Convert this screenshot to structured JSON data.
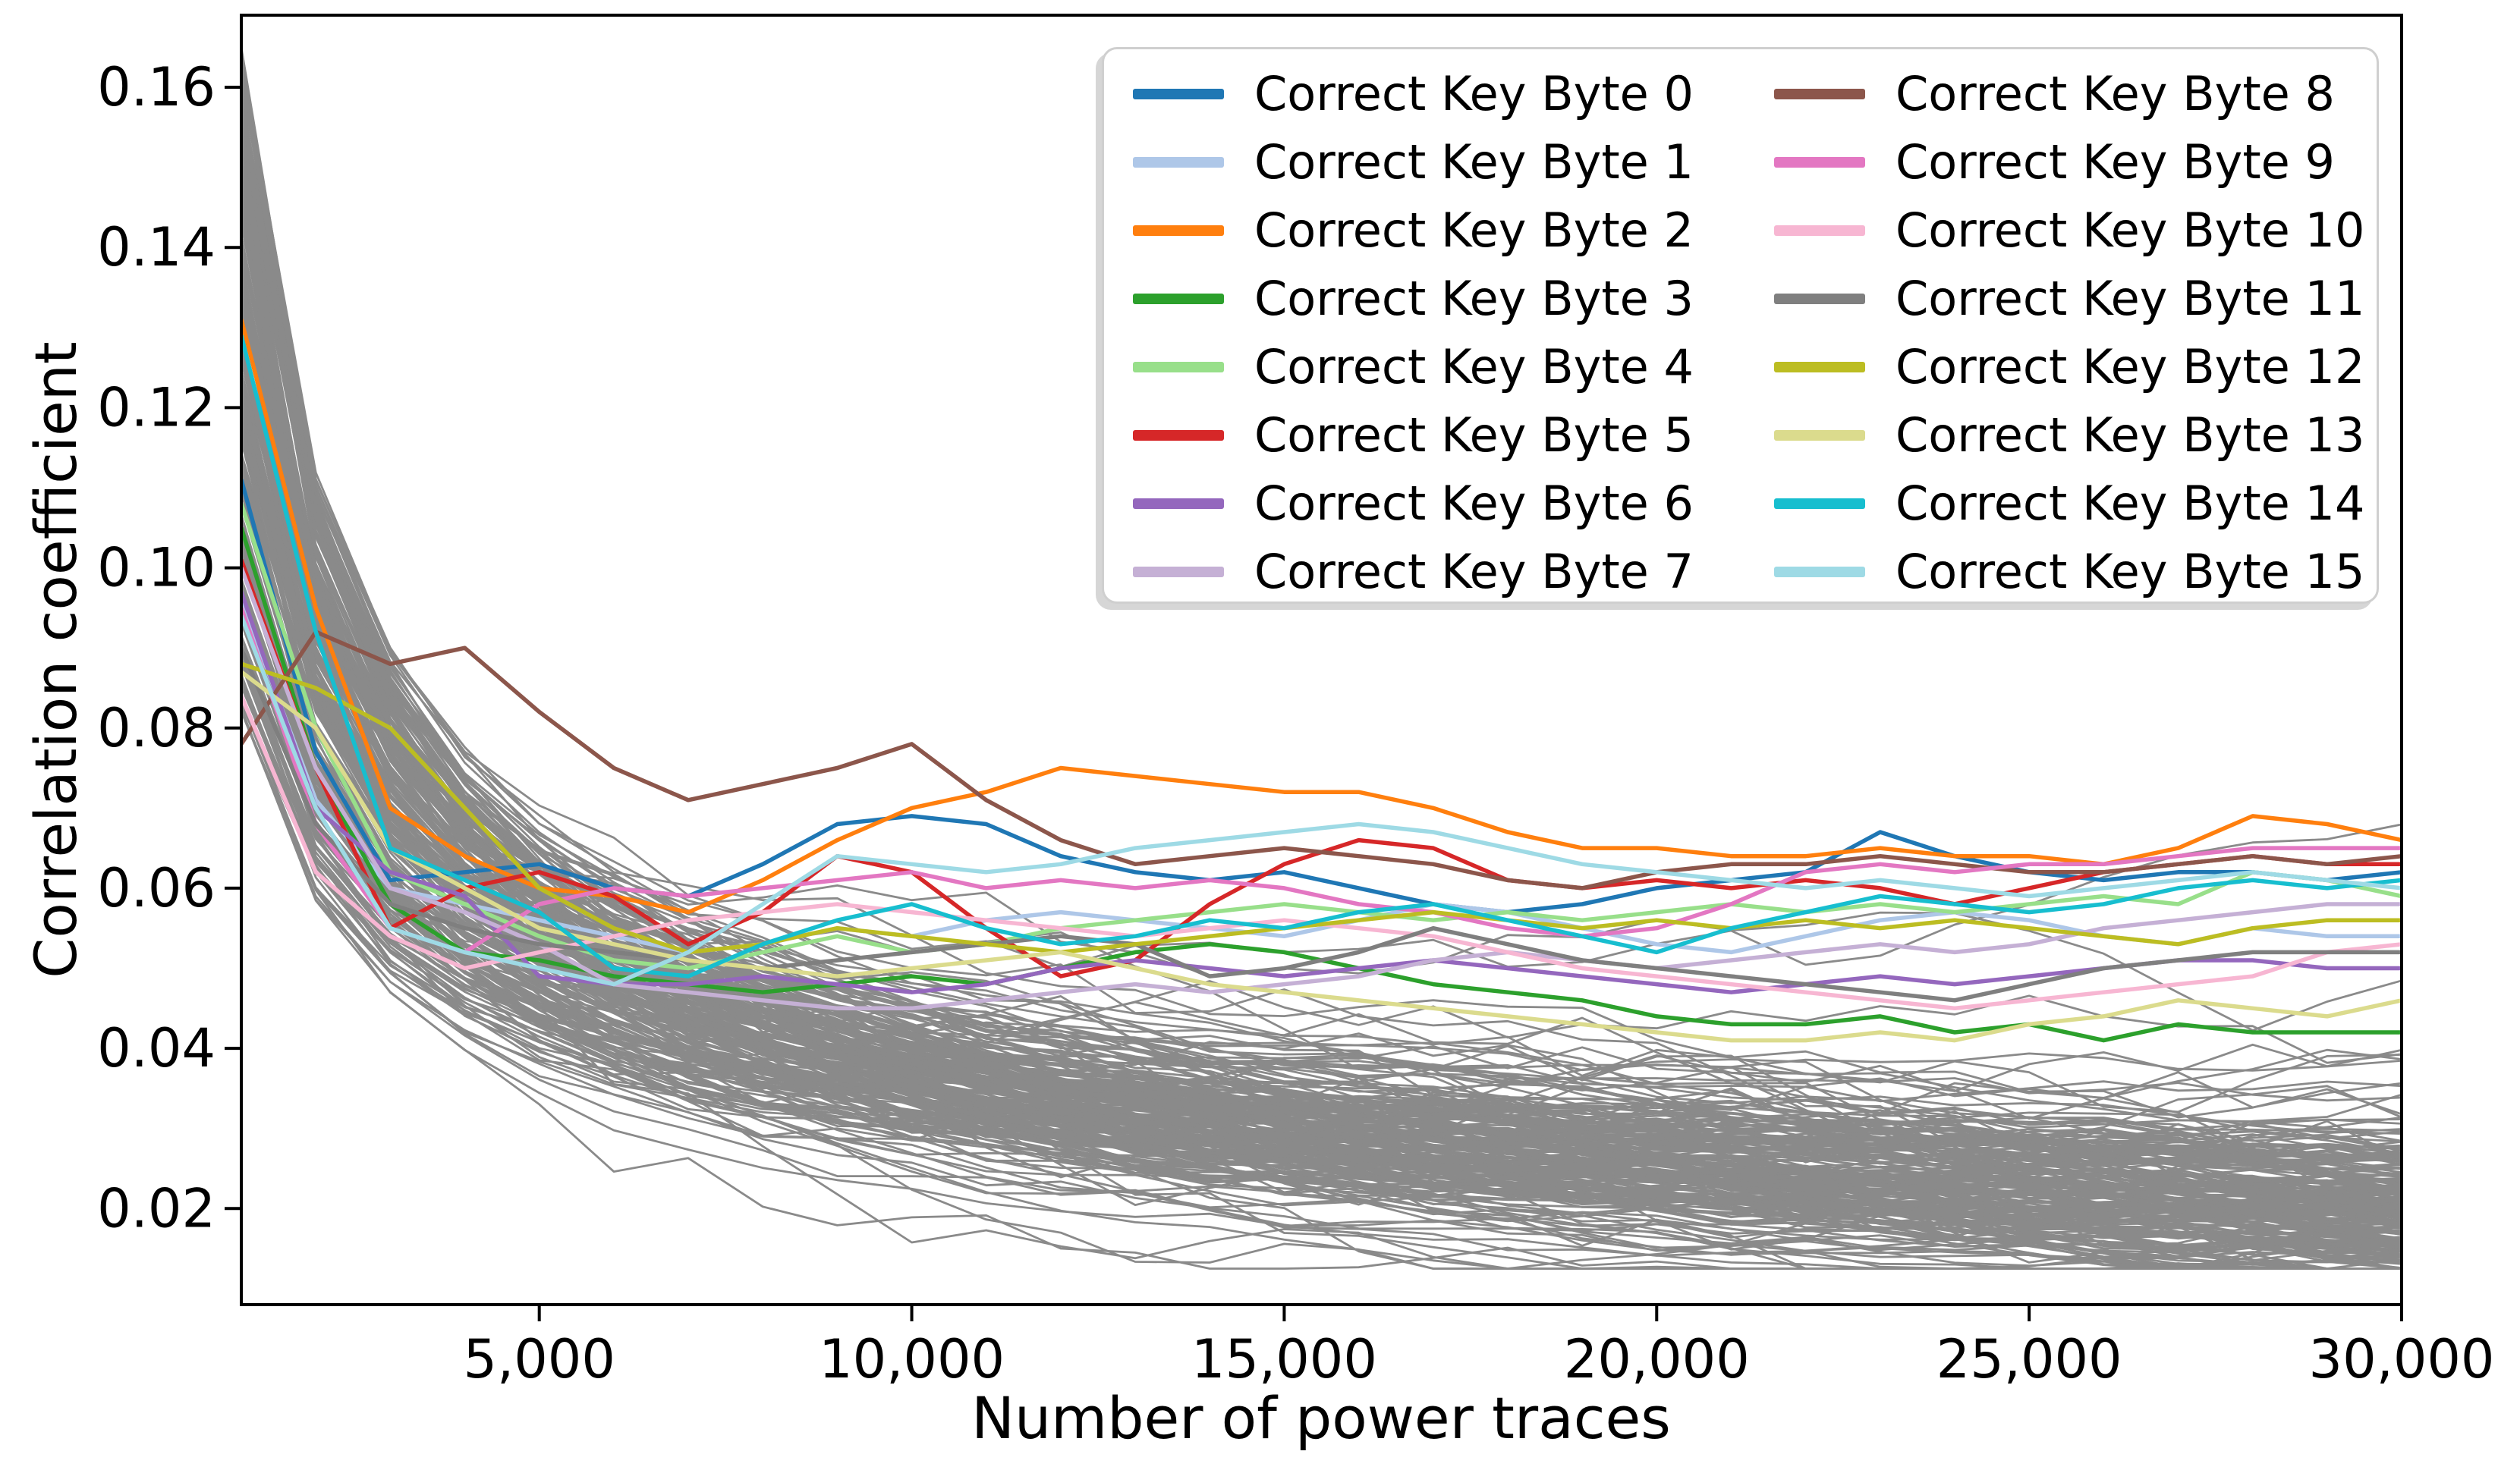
{
  "figure": {
    "kind": "line-plot-figure",
    "background_color": "#ffffff",
    "text_color": "#000000"
  },
  "chart_data": {
    "type": "line",
    "title": "",
    "xlabel": "Number of power traces",
    "ylabel": "Correlation coefficient",
    "grid": false,
    "legend": {
      "position": "upper right",
      "columns": 2,
      "border_color": "#cfcfcf",
      "background_color": "#ffffff"
    },
    "x_range": [
      1000,
      30000
    ],
    "y_axis_range": [
      0.008,
      0.169
    ],
    "x_ticks": [
      {
        "value": 5000,
        "label": "5,000"
      },
      {
        "value": 10000,
        "label": "10,000"
      },
      {
        "value": 15000,
        "label": "15,000"
      },
      {
        "value": 20000,
        "label": "20,000"
      },
      {
        "value": 25000,
        "label": "25,000"
      },
      {
        "value": 30000,
        "label": "30,000"
      }
    ],
    "y_ticks": [
      {
        "value": 0.02,
        "label": "0.02"
      },
      {
        "value": 0.04,
        "label": "0.04"
      },
      {
        "value": 0.06,
        "label": "0.06"
      },
      {
        "value": 0.08,
        "label": "0.08"
      },
      {
        "value": 0.1,
        "label": "0.10"
      },
      {
        "value": 0.12,
        "label": "0.12"
      },
      {
        "value": 0.14,
        "label": "0.14"
      },
      {
        "value": 0.16,
        "label": "0.16"
      }
    ],
    "x": [
      1000,
      2000,
      3000,
      4000,
      5000,
      6000,
      7000,
      8000,
      9000,
      10000,
      11000,
      12000,
      13000,
      14000,
      15000,
      16000,
      17000,
      18000,
      19000,
      20000,
      21000,
      22000,
      23000,
      24000,
      25000,
      26000,
      27000,
      28000,
      29000,
      30000
    ],
    "series": [
      {
        "name": "Correct Key Byte 0",
        "color": "#1f77b4",
        "values": [
          0.111,
          0.077,
          0.061,
          0.062,
          0.063,
          0.06,
          0.059,
          0.063,
          0.068,
          0.069,
          0.068,
          0.064,
          0.062,
          0.061,
          0.062,
          0.06,
          0.058,
          0.057,
          0.058,
          0.06,
          0.061,
          0.062,
          0.067,
          0.064,
          0.062,
          0.061,
          0.062,
          0.062,
          0.061,
          0.062
        ]
      },
      {
        "name": "Correct Key Byte 1",
        "color": "#aec7e8",
        "values": [
          0.096,
          0.071,
          0.06,
          0.058,
          0.056,
          0.054,
          0.052,
          0.053,
          0.055,
          0.054,
          0.056,
          0.057,
          0.056,
          0.055,
          0.054,
          0.056,
          0.058,
          0.057,
          0.055,
          0.053,
          0.052,
          0.054,
          0.056,
          0.057,
          0.056,
          0.054,
          0.053,
          0.055,
          0.054,
          0.054
        ]
      },
      {
        "name": "Correct Key Byte 2",
        "color": "#ff7f0e",
        "values": [
          0.131,
          0.095,
          0.07,
          0.064,
          0.06,
          0.059,
          0.057,
          0.061,
          0.066,
          0.07,
          0.072,
          0.075,
          0.074,
          0.073,
          0.072,
          0.072,
          0.07,
          0.067,
          0.065,
          0.065,
          0.064,
          0.064,
          0.065,
          0.064,
          0.064,
          0.063,
          0.065,
          0.069,
          0.068,
          0.066
        ]
      },
      {
        "name": "Correct Key Byte 3",
        "color": "#2ca02c",
        "values": [
          0.105,
          0.075,
          0.058,
          0.052,
          0.051,
          0.049,
          0.048,
          0.047,
          0.048,
          0.049,
          0.048,
          0.05,
          0.052,
          0.053,
          0.052,
          0.05,
          0.048,
          0.047,
          0.046,
          0.044,
          0.043,
          0.043,
          0.044,
          0.042,
          0.043,
          0.041,
          0.043,
          0.042,
          0.042,
          0.042
        ]
      },
      {
        "name": "Correct Key Byte 4",
        "color": "#98df8a",
        "values": [
          0.108,
          0.08,
          0.062,
          0.058,
          0.054,
          0.051,
          0.05,
          0.052,
          0.054,
          0.052,
          0.053,
          0.055,
          0.056,
          0.057,
          0.058,
          0.057,
          0.056,
          0.057,
          0.056,
          0.057,
          0.058,
          0.057,
          0.058,
          0.057,
          0.058,
          0.059,
          0.058,
          0.062,
          0.061,
          0.059
        ]
      },
      {
        "name": "Correct Key Byte 5",
        "color": "#d62728",
        "values": [
          0.101,
          0.075,
          0.055,
          0.06,
          0.062,
          0.059,
          0.053,
          0.057,
          0.064,
          0.062,
          0.055,
          0.049,
          0.051,
          0.058,
          0.063,
          0.066,
          0.065,
          0.061,
          0.06,
          0.061,
          0.06,
          0.061,
          0.06,
          0.058,
          0.06,
          0.062,
          0.063,
          0.064,
          0.063,
          0.063
        ]
      },
      {
        "name": "Correct Key Byte 6",
        "color": "#9467bd",
        "values": [
          0.097,
          0.07,
          0.062,
          0.059,
          0.049,
          0.048,
          0.048,
          0.049,
          0.048,
          0.047,
          0.048,
          0.05,
          0.051,
          0.05,
          0.049,
          0.05,
          0.051,
          0.05,
          0.049,
          0.048,
          0.047,
          0.048,
          0.049,
          0.048,
          0.049,
          0.05,
          0.051,
          0.051,
          0.05,
          0.05
        ]
      },
      {
        "name": "Correct Key Byte 7",
        "color": "#c5b0d5",
        "values": [
          0.1,
          0.075,
          0.06,
          0.057,
          0.053,
          0.048,
          0.047,
          0.046,
          0.045,
          0.045,
          0.046,
          0.047,
          0.048,
          0.047,
          0.048,
          0.049,
          0.051,
          0.052,
          0.051,
          0.05,
          0.051,
          0.052,
          0.053,
          0.052,
          0.053,
          0.055,
          0.056,
          0.057,
          0.058,
          0.058
        ]
      },
      {
        "name": "Correct Key Byte 8",
        "color": "#8c564b",
        "values": [
          0.078,
          0.092,
          0.088,
          0.09,
          0.082,
          0.075,
          0.071,
          0.073,
          0.075,
          0.078,
          0.071,
          0.066,
          0.063,
          0.064,
          0.065,
          0.064,
          0.063,
          0.061,
          0.06,
          0.062,
          0.063,
          0.063,
          0.064,
          0.063,
          0.062,
          0.062,
          0.063,
          0.064,
          0.063,
          0.064
        ]
      },
      {
        "name": "Correct Key Byte 9",
        "color": "#e377c2",
        "values": [
          0.095,
          0.068,
          0.055,
          0.052,
          0.058,
          0.06,
          0.059,
          0.06,
          0.061,
          0.062,
          0.06,
          0.061,
          0.06,
          0.061,
          0.06,
          0.058,
          0.057,
          0.055,
          0.054,
          0.055,
          0.058,
          0.062,
          0.063,
          0.062,
          0.063,
          0.063,
          0.064,
          0.065,
          0.065,
          0.065
        ]
      },
      {
        "name": "Correct Key Byte 10",
        "color": "#f7b6d2",
        "values": [
          0.084,
          0.062,
          0.054,
          0.05,
          0.052,
          0.054,
          0.056,
          0.057,
          0.058,
          0.057,
          0.056,
          0.055,
          0.054,
          0.055,
          0.056,
          0.055,
          0.054,
          0.052,
          0.05,
          0.049,
          0.048,
          0.047,
          0.046,
          0.045,
          0.046,
          0.047,
          0.048,
          0.049,
          0.052,
          0.053
        ]
      },
      {
        "name": "Correct Key Byte 11",
        "color": "#7f7f7f",
        "values": [
          0.09,
          0.068,
          0.058,
          0.055,
          0.053,
          0.052,
          0.051,
          0.05,
          0.051,
          0.052,
          0.053,
          0.054,
          0.053,
          0.049,
          0.05,
          0.052,
          0.055,
          0.053,
          0.051,
          0.05,
          0.049,
          0.048,
          0.047,
          0.046,
          0.048,
          0.05,
          0.051,
          0.052,
          0.052,
          0.052
        ]
      },
      {
        "name": "Correct Key Byte 12",
        "color": "#bcbd22",
        "values": [
          0.088,
          0.085,
          0.08,
          0.07,
          0.06,
          0.055,
          0.052,
          0.053,
          0.055,
          0.054,
          0.053,
          0.052,
          0.053,
          0.054,
          0.055,
          0.056,
          0.057,
          0.056,
          0.055,
          0.056,
          0.055,
          0.056,
          0.055,
          0.056,
          0.055,
          0.054,
          0.053,
          0.055,
          0.056,
          0.056
        ]
      },
      {
        "name": "Correct Key Byte 13",
        "color": "#dbdb8d",
        "values": [
          0.087,
          0.08,
          0.065,
          0.06,
          0.055,
          0.053,
          0.051,
          0.05,
          0.049,
          0.05,
          0.051,
          0.052,
          0.05,
          0.048,
          0.047,
          0.046,
          0.045,
          0.044,
          0.043,
          0.042,
          0.041,
          0.041,
          0.042,
          0.041,
          0.043,
          0.044,
          0.046,
          0.045,
          0.044,
          0.046
        ]
      },
      {
        "name": "Correct Key Byte 14",
        "color": "#17becf",
        "values": [
          0.129,
          0.092,
          0.065,
          0.061,
          0.057,
          0.05,
          0.049,
          0.053,
          0.056,
          0.058,
          0.055,
          0.053,
          0.054,
          0.056,
          0.055,
          0.057,
          0.058,
          0.056,
          0.054,
          0.052,
          0.055,
          0.057,
          0.059,
          0.058,
          0.057,
          0.058,
          0.06,
          0.061,
          0.06,
          0.061
        ]
      },
      {
        "name": "Correct Key Byte 15",
        "color": "#9edae5",
        "values": [
          0.094,
          0.07,
          0.055,
          0.052,
          0.05,
          0.048,
          0.052,
          0.058,
          0.064,
          0.063,
          0.062,
          0.063,
          0.065,
          0.066,
          0.067,
          0.068,
          0.067,
          0.065,
          0.063,
          0.062,
          0.061,
          0.06,
          0.061,
          0.06,
          0.059,
          0.06,
          0.061,
          0.062,
          0.061,
          0.06
        ]
      }
    ],
    "background_traces": {
      "description": "incorrect key guess correlation traces",
      "color": "#8a8a8a",
      "count": 240,
      "seed": 7,
      "start_value_range": [
        0.082,
        0.165
      ],
      "end_value_range": [
        0.013,
        0.03
      ],
      "decay": "power-law"
    }
  }
}
